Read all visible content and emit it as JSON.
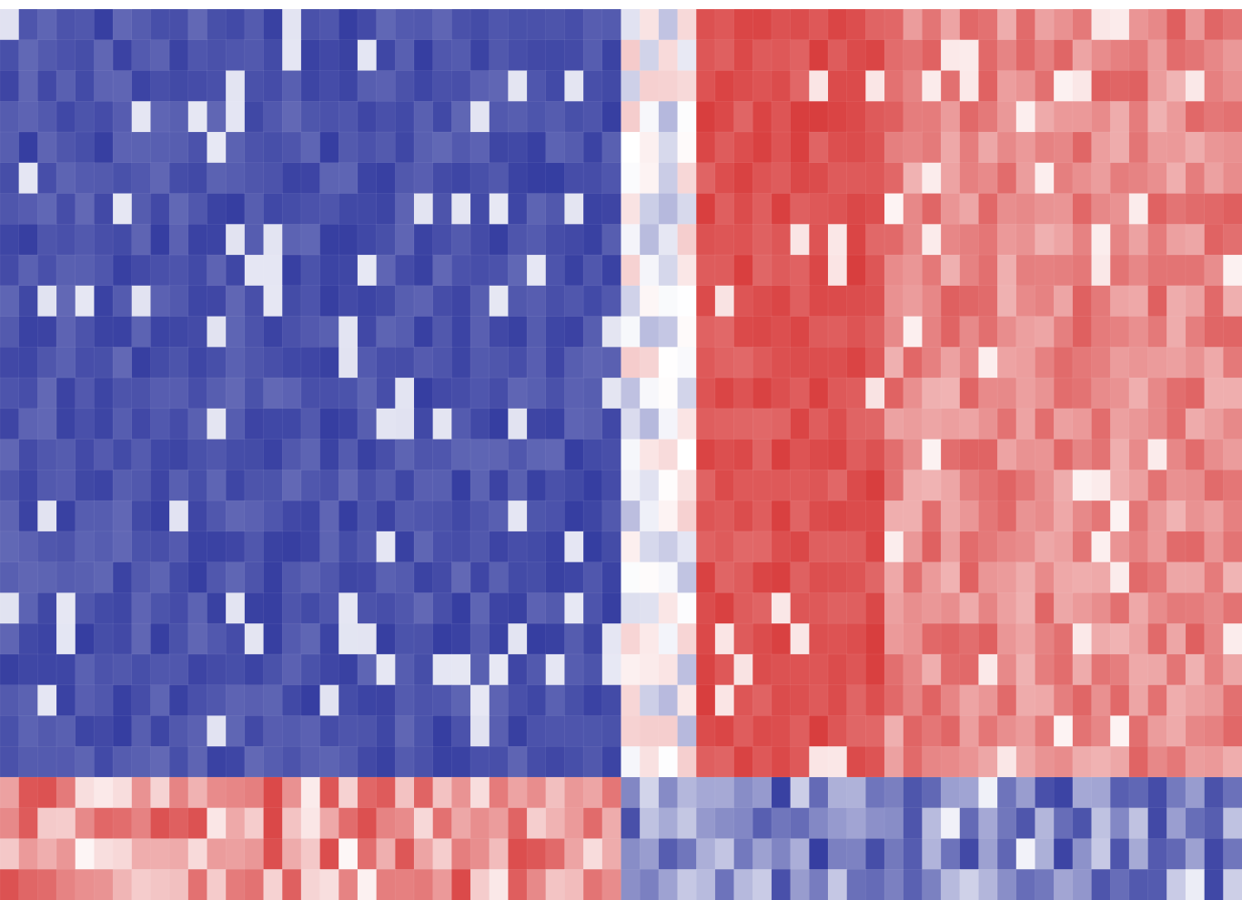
{
  "chart_data": {
    "type": "heatmap",
    "rows": 29,
    "cols": 66,
    "value_range": [
      -1,
      1
    ],
    "colors": {
      "low": "#1f2896",
      "mid": "#ffffff",
      "high": "#d42828",
      "background": "#ffffff"
    },
    "blocks": [
      {
        "rows": [
          0,
          24
        ],
        "cols": [
          0,
          32
        ],
        "mean": -0.8,
        "spread": 0.1
      },
      {
        "rows": [
          0,
          24
        ],
        "cols": [
          33,
          36
        ],
        "mean": -0.05,
        "spread": 0.3
      },
      {
        "rows": [
          0,
          24
        ],
        "cols": [
          37,
          46
        ],
        "mean": 0.8,
        "spread": 0.1
      },
      {
        "rows": [
          0,
          24
        ],
        "cols": [
          47,
          65
        ],
        "mean": 0.55,
        "spread": 0.2
      },
      {
        "rows": [
          25,
          28
        ],
        "cols": [
          0,
          32
        ],
        "mean": 0.5,
        "spread": 0.35
      },
      {
        "rows": [
          25,
          28
        ],
        "cols": [
          33,
          65
        ],
        "mean": -0.55,
        "spread": 0.35
      }
    ]
  }
}
